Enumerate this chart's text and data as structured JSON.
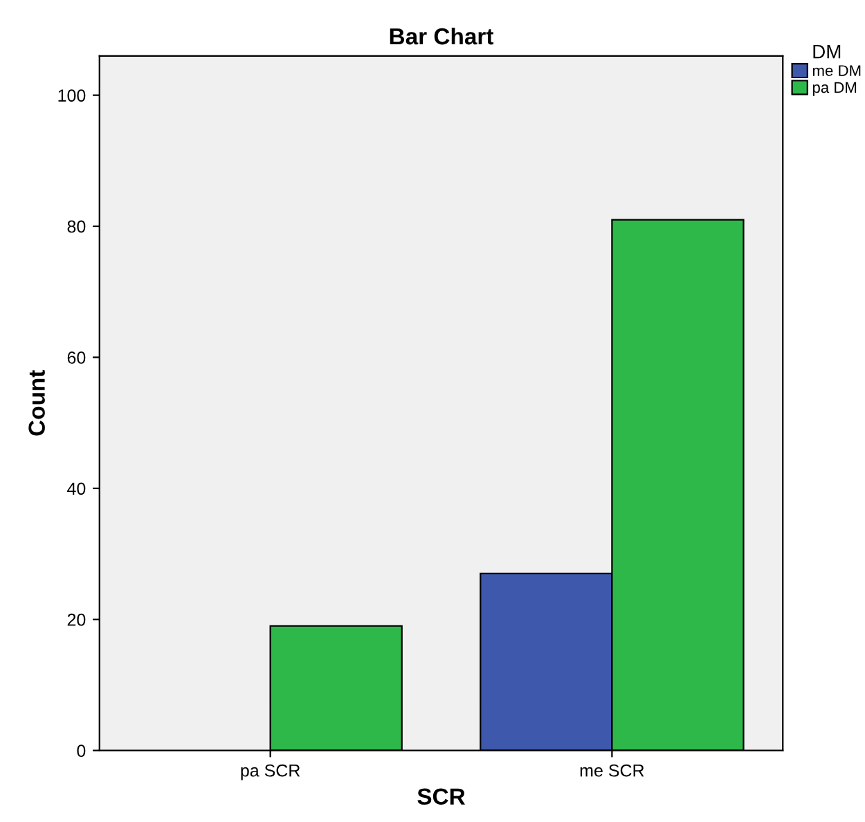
{
  "chart_data": {
    "type": "bar",
    "title": "Bar Chart",
    "xlabel": "SCR",
    "ylabel": "Count",
    "legend_title": "DM",
    "categories": [
      "pa SCR",
      "me SCR"
    ],
    "series": [
      {
        "name": "me DM",
        "color": "#3e58ac",
        "values": [
          null,
          27
        ]
      },
      {
        "name": "pa DM",
        "color": "#2eb84a",
        "values": [
          19,
          81
        ]
      }
    ],
    "ylim": [
      0,
      106
    ],
    "yticks": [
      0,
      20,
      40,
      60,
      80,
      100
    ],
    "grid": false,
    "legend": "top right"
  }
}
